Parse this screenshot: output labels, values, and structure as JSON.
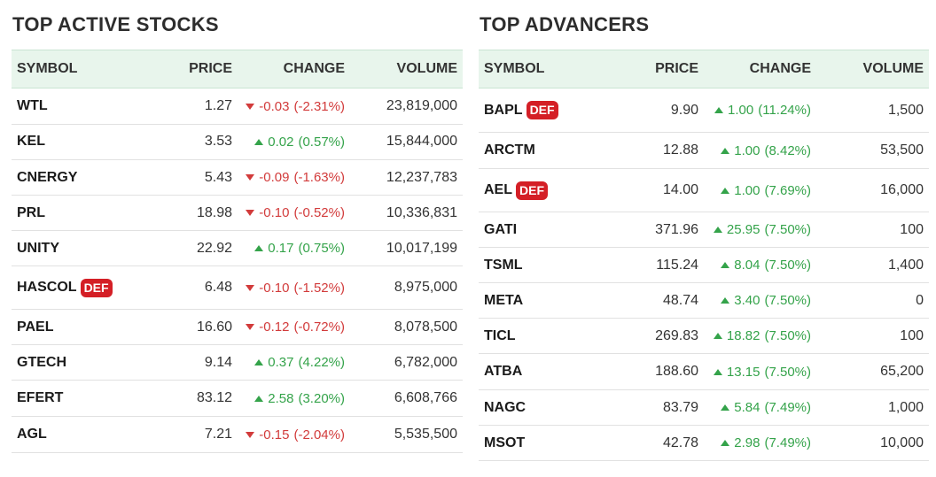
{
  "colors": {
    "up": "#34a34a",
    "down": "#d23b3b",
    "badge": "#d41f26",
    "header_bg": "#e8f5ec"
  },
  "left": {
    "title": "TOP ACTIVE STOCKS",
    "headers": {
      "symbol": "SYMBOL",
      "price": "PRICE",
      "change": "CHANGE",
      "volume": "VOLUME"
    },
    "rows": [
      {
        "symbol": "WTL",
        "badge": "",
        "price": "1.27",
        "direction": "down",
        "change": "-0.03",
        "pct": "(-2.31%)",
        "volume": "23,819,000"
      },
      {
        "symbol": "KEL",
        "badge": "",
        "price": "3.53",
        "direction": "up",
        "change": "0.02",
        "pct": "(0.57%)",
        "volume": "15,844,000"
      },
      {
        "symbol": "CNERGY",
        "badge": "",
        "price": "5.43",
        "direction": "down",
        "change": "-0.09",
        "pct": "(-1.63%)",
        "volume": "12,237,783"
      },
      {
        "symbol": "PRL",
        "badge": "",
        "price": "18.98",
        "direction": "down",
        "change": "-0.10",
        "pct": "(-0.52%)",
        "volume": "10,336,831"
      },
      {
        "symbol": "UNITY",
        "badge": "",
        "price": "22.92",
        "direction": "up",
        "change": "0.17",
        "pct": "(0.75%)",
        "volume": "10,017,199"
      },
      {
        "symbol": "HASCOL",
        "badge": "DEF",
        "price": "6.48",
        "direction": "down",
        "change": "-0.10",
        "pct": "(-1.52%)",
        "volume": "8,975,000"
      },
      {
        "symbol": "PAEL",
        "badge": "",
        "price": "16.60",
        "direction": "down",
        "change": "-0.12",
        "pct": "(-0.72%)",
        "volume": "8,078,500"
      },
      {
        "symbol": "GTECH",
        "badge": "",
        "price": "9.14",
        "direction": "up",
        "change": "0.37",
        "pct": "(4.22%)",
        "volume": "6,782,000"
      },
      {
        "symbol": "EFERT",
        "badge": "",
        "price": "83.12",
        "direction": "up",
        "change": "2.58",
        "pct": "(3.20%)",
        "volume": "6,608,766"
      },
      {
        "symbol": "AGL",
        "badge": "",
        "price": "7.21",
        "direction": "down",
        "change": "-0.15",
        "pct": "(-2.04%)",
        "volume": "5,535,500"
      }
    ]
  },
  "right": {
    "title": "TOP ADVANCERS",
    "headers": {
      "symbol": "SYMBOL",
      "price": "PRICE",
      "change": "CHANGE",
      "volume": "VOLUME"
    },
    "rows": [
      {
        "symbol": "BAPL",
        "badge": "DEF",
        "price": "9.90",
        "direction": "up",
        "change": "1.00",
        "pct": "(11.24%)",
        "volume": "1,500"
      },
      {
        "symbol": "ARCTM",
        "badge": "",
        "price": "12.88",
        "direction": "up",
        "change": "1.00",
        "pct": "(8.42%)",
        "volume": "53,500"
      },
      {
        "symbol": "AEL",
        "badge": "DEF",
        "price": "14.00",
        "direction": "up",
        "change": "1.00",
        "pct": "(7.69%)",
        "volume": "16,000"
      },
      {
        "symbol": "GATI",
        "badge": "",
        "price": "371.96",
        "direction": "up",
        "change": "25.95",
        "pct": "(7.50%)",
        "volume": "100"
      },
      {
        "symbol": "TSML",
        "badge": "",
        "price": "115.24",
        "direction": "up",
        "change": "8.04",
        "pct": "(7.50%)",
        "volume": "1,400"
      },
      {
        "symbol": "META",
        "badge": "",
        "price": "48.74",
        "direction": "up",
        "change": "3.40",
        "pct": "(7.50%)",
        "volume": "0"
      },
      {
        "symbol": "TICL",
        "badge": "",
        "price": "269.83",
        "direction": "up",
        "change": "18.82",
        "pct": "(7.50%)",
        "volume": "100"
      },
      {
        "symbol": "ATBA",
        "badge": "",
        "price": "188.60",
        "direction": "up",
        "change": "13.15",
        "pct": "(7.50%)",
        "volume": "65,200"
      },
      {
        "symbol": "NAGC",
        "badge": "",
        "price": "83.79",
        "direction": "up",
        "change": "5.84",
        "pct": "(7.49%)",
        "volume": "1,000"
      },
      {
        "symbol": "MSOT",
        "badge": "",
        "price": "42.78",
        "direction": "up",
        "change": "2.98",
        "pct": "(7.49%)",
        "volume": "10,000"
      }
    ]
  }
}
